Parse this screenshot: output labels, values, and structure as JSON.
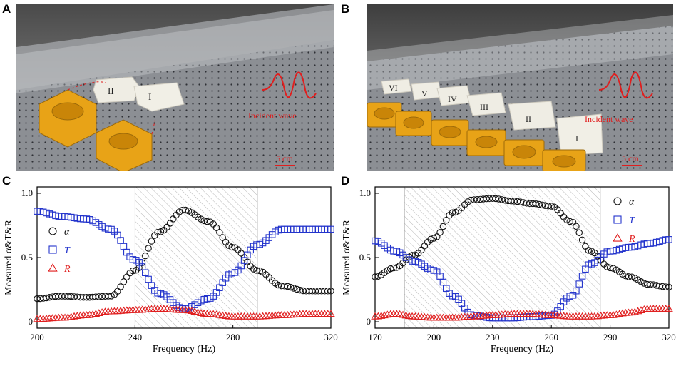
{
  "figure": {
    "panel_labels": [
      "A",
      "B",
      "C",
      "D"
    ]
  },
  "photo_a": {
    "labels": [
      "II",
      "I"
    ],
    "wave_label": "Incident wave",
    "scale_label": "5 cm"
  },
  "photo_b": {
    "labels": [
      "VI",
      "V",
      "IV",
      "III",
      "II",
      "I"
    ],
    "wave_label": "Incident wave",
    "scale_label": "5 cm"
  },
  "colors": {
    "alpha": "#111111",
    "T": "#2233cc",
    "R": "#e01e1e",
    "hatch": "#b8b8b8",
    "orange": "#e8a317",
    "wave": "#e01e1e"
  },
  "chart_data": [
    {
      "panel": "C",
      "type": "scatter",
      "xlabel": "Frequency (Hz)",
      "ylabel": "Measured α&T&R",
      "xlim": [
        200,
        320
      ],
      "ylim": [
        -0.05,
        1.05
      ],
      "xticks": [
        "200",
        "240",
        "280",
        "320"
      ],
      "yticks": [
        "0",
        "0.5",
        "1.0"
      ],
      "shaded_band": [
        240,
        290
      ],
      "legend": [
        "α",
        "T",
        "R"
      ],
      "series": [
        {
          "name": "α",
          "marker": "circle",
          "x": [
            200,
            210,
            220,
            230,
            240,
            250,
            260,
            270,
            280,
            290,
            300,
            310,
            320
          ],
          "y": [
            0.18,
            0.2,
            0.19,
            0.2,
            0.4,
            0.7,
            0.87,
            0.78,
            0.58,
            0.4,
            0.28,
            0.24,
            0.24
          ]
        },
        {
          "name": "T",
          "marker": "square",
          "x": [
            200,
            210,
            220,
            230,
            240,
            250,
            260,
            270,
            280,
            290,
            300,
            310,
            320
          ],
          "y": [
            0.86,
            0.82,
            0.8,
            0.72,
            0.48,
            0.22,
            0.1,
            0.18,
            0.38,
            0.6,
            0.72,
            0.72,
            0.72
          ]
        },
        {
          "name": "R",
          "marker": "triangle",
          "x": [
            200,
            210,
            220,
            230,
            240,
            250,
            260,
            270,
            280,
            290,
            300,
            310,
            320
          ],
          "y": [
            0.02,
            0.03,
            0.05,
            0.08,
            0.09,
            0.1,
            0.09,
            0.06,
            0.04,
            0.04,
            0.05,
            0.06,
            0.06
          ]
        }
      ]
    },
    {
      "panel": "D",
      "type": "scatter",
      "xlabel": "Frequency (Hz)",
      "ylabel": "Measured α&T&R",
      "xlim": [
        170,
        320
      ],
      "ylim": [
        -0.05,
        1.05
      ],
      "xticks": [
        "170",
        "200",
        "230",
        "260",
        "290",
        "320"
      ],
      "yticks": [
        "0",
        "0.5",
        "1.0"
      ],
      "shaded_band": [
        185,
        285
      ],
      "legend": [
        "α",
        "T",
        "R"
      ],
      "series": [
        {
          "name": "α",
          "marker": "circle",
          "x": [
            170,
            180,
            190,
            200,
            210,
            220,
            230,
            240,
            250,
            260,
            270,
            280,
            290,
            300,
            310,
            320
          ],
          "y": [
            0.35,
            0.42,
            0.52,
            0.65,
            0.85,
            0.95,
            0.96,
            0.94,
            0.92,
            0.9,
            0.78,
            0.55,
            0.42,
            0.35,
            0.29,
            0.27
          ]
        },
        {
          "name": "T",
          "marker": "square",
          "x": [
            170,
            180,
            190,
            200,
            210,
            220,
            230,
            240,
            250,
            260,
            270,
            280,
            290,
            300,
            310,
            320
          ],
          "y": [
            0.63,
            0.55,
            0.47,
            0.4,
            0.2,
            0.05,
            0.03,
            0.03,
            0.04,
            0.05,
            0.2,
            0.45,
            0.55,
            0.58,
            0.61,
            0.64
          ]
        },
        {
          "name": "R",
          "marker": "triangle",
          "x": [
            170,
            180,
            190,
            200,
            210,
            220,
            230,
            240,
            250,
            260,
            270,
            280,
            290,
            300,
            310,
            320
          ],
          "y": [
            0.04,
            0.06,
            0.04,
            0.03,
            0.03,
            0.04,
            0.05,
            0.06,
            0.06,
            0.05,
            0.04,
            0.04,
            0.05,
            0.07,
            0.1,
            0.1
          ]
        }
      ]
    }
  ]
}
